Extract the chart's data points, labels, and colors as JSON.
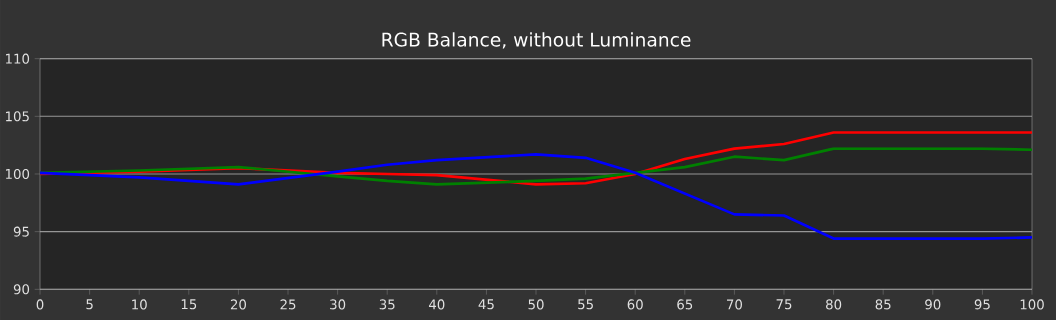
{
  "chart_data": {
    "type": "line",
    "title": "RGB Balance, without Luminance",
    "x": [
      0,
      10,
      20,
      30,
      35,
      40,
      50,
      55,
      60,
      65,
      70,
      75,
      80,
      90,
      95,
      100
    ],
    "series": [
      {
        "color": "#ff0000",
        "values": [
          100.0,
          100.2,
          100.5,
          100.1,
          100.0,
          99.9,
          99.1,
          99.2,
          100.0,
          101.3,
          102.2,
          102.6,
          103.6,
          103.6,
          103.6,
          103.6
        ]
      },
      {
        "color": "#008000",
        "values": [
          100.1,
          100.3,
          100.6,
          99.8,
          99.4,
          99.1,
          99.4,
          99.6,
          100.1,
          100.6,
          101.5,
          101.2,
          102.2,
          102.2,
          102.2,
          102.1
        ]
      },
      {
        "color": "#0000ff",
        "values": [
          100.1,
          99.7,
          99.1,
          100.2,
          100.8,
          101.2,
          101.7,
          101.4,
          100.1,
          98.3,
          96.5,
          96.4,
          94.4,
          94.4,
          94.4,
          94.5
        ]
      }
    ],
    "xlim": [
      0,
      100
    ],
    "ylim": [
      90,
      110
    ],
    "xticks": [
      0,
      5,
      10,
      15,
      20,
      25,
      30,
      35,
      40,
      45,
      50,
      55,
      60,
      65,
      70,
      75,
      80,
      85,
      90,
      95,
      100
    ],
    "yticks": [
      90,
      95,
      100,
      105,
      110
    ],
    "grid": "y",
    "marker": "none",
    "line_style": "solid"
  }
}
